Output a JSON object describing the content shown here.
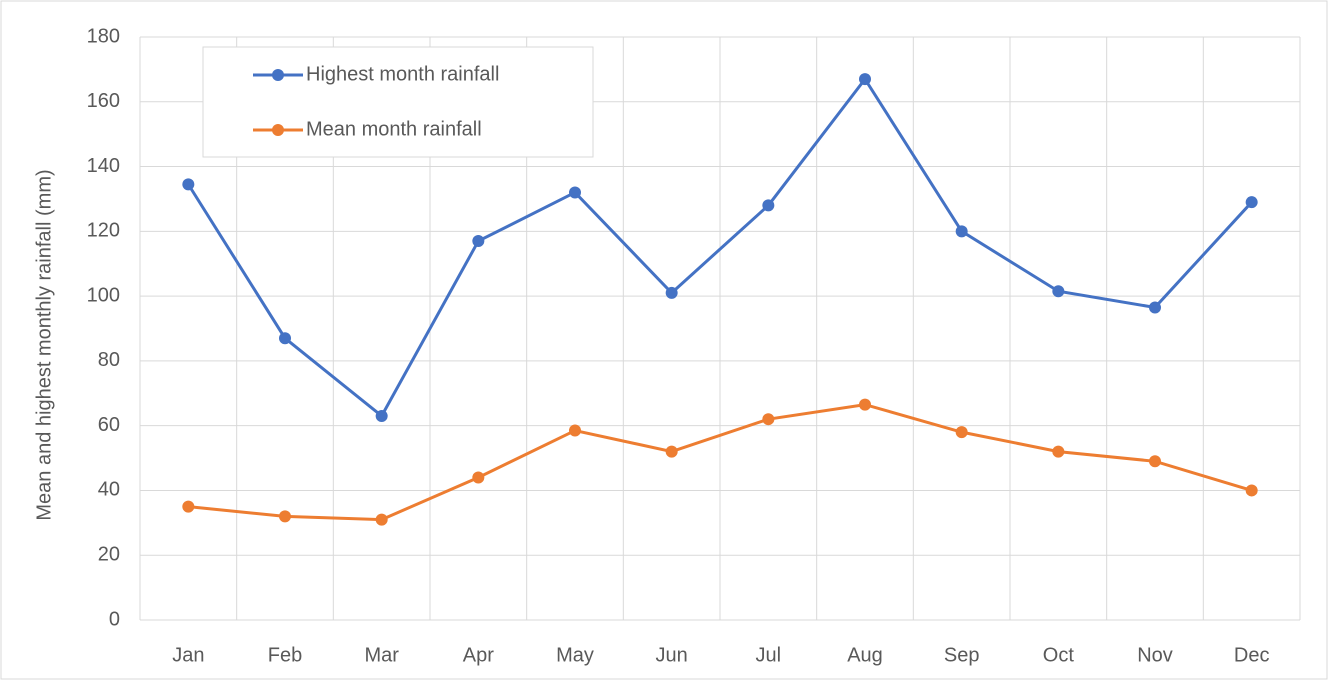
{
  "chart_data": {
    "type": "line",
    "ylabel": "Mean and highest monthly rainfall (mm)",
    "categories": [
      "Jan",
      "Feb",
      "Mar",
      "Apr",
      "May",
      "Jun",
      "Jul",
      "Aug",
      "Sep",
      "Oct",
      "Nov",
      "Dec"
    ],
    "series": [
      {
        "name": "Highest month rainfall",
        "color": "#4472c4",
        "values": [
          134.5,
          87,
          63,
          117,
          132,
          101,
          128,
          167,
          120,
          101.5,
          96.5,
          129
        ]
      },
      {
        "name": "Mean month rainfall",
        "color": "#ed7d31",
        "values": [
          35,
          32,
          31,
          44,
          58.5,
          52,
          62,
          66.5,
          58,
          52,
          49,
          40
        ]
      }
    ],
    "ylim": [
      0,
      180
    ],
    "yticks": [
      0,
      20,
      40,
      60,
      80,
      100,
      120,
      140,
      160,
      180
    ],
    "grid": true,
    "legend": "upper left"
  }
}
